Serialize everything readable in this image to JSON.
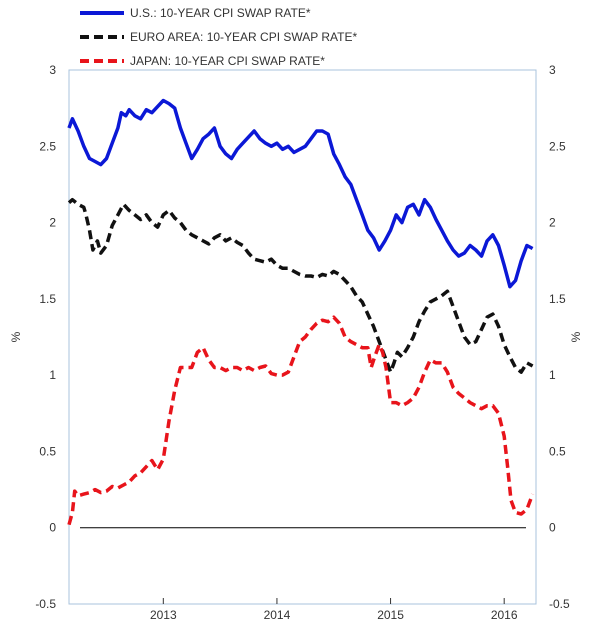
{
  "chart_data": {
    "type": "line",
    "title": "",
    "xlabel": "",
    "ylabel": "%",
    "right_ylabel": "%",
    "ylim": [
      -0.5,
      3
    ],
    "xlim": [
      2012.17,
      2016.28
    ],
    "yticks": [
      -0.5,
      0,
      0.5,
      1,
      1.5,
      2,
      2.5,
      3
    ],
    "ytick_labels": [
      "-0.5",
      "0",
      "0.5",
      "1",
      "1.5",
      "2",
      "2.5",
      "3"
    ],
    "xticks": [
      2013,
      2014,
      2015,
      2016
    ],
    "xtick_labels": [
      "2013",
      "2014",
      "2015",
      "2016"
    ],
    "zero_line": true,
    "grid": false,
    "legend_position": "top",
    "legend": [
      {
        "label": "U.S.: 10-YEAR CPI SWAP RATE*",
        "color": "#0b18d6",
        "style": "solid"
      },
      {
        "label": "EURO AREA: 10-YEAR CPI SWAP RATE*",
        "color": "#111111",
        "style": "dashed"
      },
      {
        "label": "JAPAN: 10-YEAR CPI SWAP RATE*",
        "color": "#e8141b",
        "style": "dashed"
      }
    ],
    "series": [
      {
        "name": "U.S.: 10-YEAR CPI SWAP RATE*",
        "color": "#0b18d6",
        "style": "solid",
        "x": [
          2012.17,
          2012.2,
          2012.25,
          2012.3,
          2012.35,
          2012.4,
          2012.45,
          2012.5,
          2012.55,
          2012.6,
          2012.63,
          2012.67,
          2012.7,
          2012.75,
          2012.8,
          2012.85,
          2012.9,
          2012.95,
          2013.0,
          2013.05,
          2013.1,
          2013.15,
          2013.2,
          2013.25,
          2013.3,
          2013.35,
          2013.4,
          2013.45,
          2013.5,
          2013.55,
          2013.6,
          2013.65,
          2013.7,
          2013.75,
          2013.8,
          2013.85,
          2013.9,
          2013.95,
          2014.0,
          2014.05,
          2014.1,
          2014.15,
          2014.2,
          2014.25,
          2014.3,
          2014.35,
          2014.4,
          2014.45,
          2014.5,
          2014.55,
          2014.6,
          2014.65,
          2014.7,
          2014.75,
          2014.8,
          2014.85,
          2014.9,
          2014.95,
          2015.0,
          2015.05,
          2015.1,
          2015.15,
          2015.2,
          2015.25,
          2015.3,
          2015.35,
          2015.4,
          2015.45,
          2015.5,
          2015.55,
          2015.6,
          2015.65,
          2015.7,
          2015.75,
          2015.8,
          2015.85,
          2015.9,
          2015.95,
          2016.0,
          2016.05,
          2016.1,
          2016.15,
          2016.2,
          2016.25
        ],
        "values": [
          2.62,
          2.68,
          2.6,
          2.5,
          2.42,
          2.4,
          2.38,
          2.42,
          2.52,
          2.62,
          2.72,
          2.7,
          2.74,
          2.7,
          2.68,
          2.74,
          2.72,
          2.76,
          2.8,
          2.78,
          2.75,
          2.62,
          2.52,
          2.42,
          2.48,
          2.55,
          2.58,
          2.62,
          2.5,
          2.45,
          2.42,
          2.48,
          2.52,
          2.56,
          2.6,
          2.55,
          2.52,
          2.5,
          2.52,
          2.48,
          2.5,
          2.46,
          2.48,
          2.5,
          2.55,
          2.6,
          2.6,
          2.58,
          2.45,
          2.38,
          2.3,
          2.25,
          2.15,
          2.05,
          1.95,
          1.9,
          1.82,
          1.88,
          1.95,
          2.05,
          2.0,
          2.1,
          2.12,
          2.05,
          2.15,
          2.1,
          2.02,
          1.95,
          1.88,
          1.82,
          1.78,
          1.8,
          1.85,
          1.82,
          1.78,
          1.88,
          1.92,
          1.85,
          1.72,
          1.58,
          1.62,
          1.75,
          1.85,
          1.83
        ]
      },
      {
        "name": "EURO AREA: 10-YEAR CPI SWAP RATE*",
        "color": "#111111",
        "style": "dashed",
        "x": [
          2012.17,
          2012.2,
          2012.25,
          2012.3,
          2012.32,
          2012.35,
          2012.38,
          2012.42,
          2012.45,
          2012.5,
          2012.55,
          2012.6,
          2012.65,
          2012.7,
          2012.75,
          2012.8,
          2012.85,
          2012.9,
          2012.95,
          2013.0,
          2013.05,
          2013.1,
          2013.15,
          2013.2,
          2013.25,
          2013.3,
          2013.35,
          2013.4,
          2013.45,
          2013.5,
          2013.55,
          2013.6,
          2013.65,
          2013.7,
          2013.75,
          2013.8,
          2013.85,
          2013.9,
          2013.95,
          2014.0,
          2014.05,
          2014.1,
          2014.15,
          2014.2,
          2014.25,
          2014.3,
          2014.35,
          2014.4,
          2014.45,
          2014.5,
          2014.55,
          2014.6,
          2014.65,
          2014.7,
          2014.75,
          2014.8,
          2014.85,
          2014.9,
          2014.95,
          2015.0,
          2015.03,
          2015.06,
          2015.1,
          2015.15,
          2015.2,
          2015.25,
          2015.3,
          2015.35,
          2015.4,
          2015.45,
          2015.5,
          2015.55,
          2015.6,
          2015.65,
          2015.7,
          2015.75,
          2015.8,
          2015.85,
          2015.9,
          2015.95,
          2016.0,
          2016.05,
          2016.1,
          2016.15,
          2016.2,
          2016.25
        ],
        "values": [
          2.13,
          2.15,
          2.12,
          2.1,
          2.05,
          1.95,
          1.82,
          1.88,
          1.8,
          1.85,
          1.98,
          2.05,
          2.12,
          2.08,
          2.05,
          2.02,
          2.05,
          2.0,
          1.97,
          2.05,
          2.08,
          2.03,
          2.0,
          1.95,
          1.92,
          1.9,
          1.88,
          1.86,
          1.9,
          1.92,
          1.88,
          1.9,
          1.87,
          1.85,
          1.8,
          1.76,
          1.75,
          1.74,
          1.76,
          1.72,
          1.7,
          1.7,
          1.68,
          1.66,
          1.65,
          1.65,
          1.64,
          1.66,
          1.65,
          1.68,
          1.66,
          1.62,
          1.58,
          1.52,
          1.48,
          1.4,
          1.32,
          1.22,
          1.12,
          1.02,
          1.08,
          1.15,
          1.12,
          1.18,
          1.25,
          1.35,
          1.42,
          1.48,
          1.5,
          1.52,
          1.55,
          1.45,
          1.35,
          1.25,
          1.2,
          1.22,
          1.3,
          1.38,
          1.4,
          1.32,
          1.2,
          1.12,
          1.05,
          1.02,
          1.08,
          1.06
        ]
      },
      {
        "name": "JAPAN: 10-YEAR CPI SWAP RATE*",
        "color": "#e8141b",
        "style": "dashed",
        "x": [
          2012.17,
          2012.2,
          2012.22,
          2012.25,
          2012.3,
          2012.35,
          2012.4,
          2012.45,
          2012.5,
          2012.55,
          2012.6,
          2012.65,
          2012.7,
          2012.75,
          2012.8,
          2012.85,
          2012.9,
          2012.95,
          2013.0,
          2013.05,
          2013.1,
          2013.15,
          2013.2,
          2013.25,
          2013.3,
          2013.35,
          2013.4,
          2013.45,
          2013.5,
          2013.55,
          2013.6,
          2013.65,
          2013.7,
          2013.75,
          2013.8,
          2013.85,
          2013.9,
          2013.95,
          2014.0,
          2014.05,
          2014.1,
          2014.15,
          2014.2,
          2014.25,
          2014.3,
          2014.35,
          2014.4,
          2014.45,
          2014.5,
          2014.55,
          2014.6,
          2014.65,
          2014.7,
          2014.75,
          2014.8,
          2014.83,
          2014.86,
          2014.9,
          2014.93,
          2014.96,
          2015.0,
          2015.05,
          2015.1,
          2015.15,
          2015.2,
          2015.25,
          2015.3,
          2015.35,
          2015.4,
          2015.45,
          2015.5,
          2015.55,
          2015.6,
          2015.65,
          2015.7,
          2015.75,
          2015.8,
          2015.85,
          2015.9,
          2015.95,
          2016.0,
          2016.03,
          2016.06,
          2016.1,
          2016.15,
          2016.2,
          2016.25
        ],
        "values": [
          0.02,
          0.1,
          0.24,
          0.21,
          0.22,
          0.23,
          0.25,
          0.23,
          0.24,
          0.27,
          0.26,
          0.28,
          0.3,
          0.34,
          0.36,
          0.4,
          0.44,
          0.38,
          0.45,
          0.7,
          0.9,
          1.05,
          1.05,
          1.05,
          1.15,
          1.18,
          1.1,
          1.05,
          1.05,
          1.03,
          1.05,
          1.05,
          1.03,
          1.05,
          1.03,
          1.05,
          1.06,
          1.01,
          1.0,
          1.0,
          1.02,
          1.12,
          1.22,
          1.25,
          1.3,
          1.34,
          1.36,
          1.35,
          1.38,
          1.34,
          1.25,
          1.22,
          1.2,
          1.18,
          1.18,
          1.05,
          1.12,
          1.2,
          1.15,
          1.05,
          0.82,
          0.82,
          0.8,
          0.82,
          0.85,
          0.92,
          1.02,
          1.1,
          1.08,
          1.08,
          1.02,
          0.92,
          0.88,
          0.85,
          0.82,
          0.8,
          0.78,
          0.8,
          0.8,
          0.75,
          0.6,
          0.4,
          0.18,
          0.1,
          0.09,
          0.12,
          0.22
        ]
      }
    ]
  }
}
